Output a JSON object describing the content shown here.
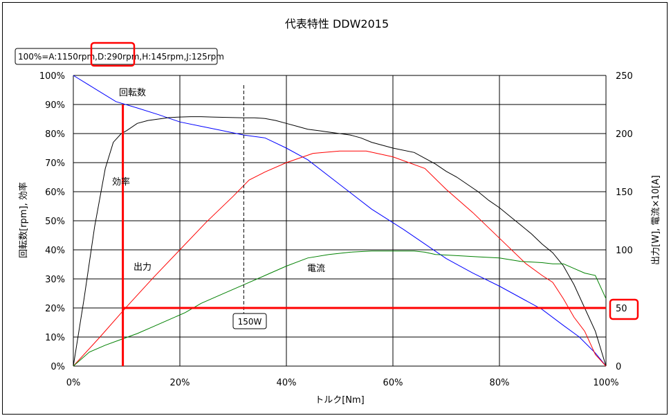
{
  "chart_data": {
    "type": "line",
    "title": "代表特性 DDW2015",
    "subtitle": "100%=A:1150rpm,D:290rpm,H:145rpm,J:125rpm",
    "xlabel": "トルク[Nm]",
    "ylabel_left": "回転数[rpm], 効率",
    "ylabel_right": "出力[W], 電流×10[A]",
    "x_ticks": [
      "0%",
      "20%",
      "40%",
      "60%",
      "80%",
      "100%"
    ],
    "y_left_ticks": [
      "0%",
      "10%",
      "20%",
      "30%",
      "40%",
      "50%",
      "60%",
      "70%",
      "80%",
      "90%",
      "100%"
    ],
    "y_right_ticks": [
      "0",
      "50",
      "100",
      "150",
      "200",
      "250"
    ],
    "xlim": [
      0,
      100
    ],
    "ylim_left": [
      0,
      100
    ],
    "ylim_right": [
      0,
      250
    ],
    "grid": true,
    "series": [
      {
        "name": "回転数",
        "axis": "left",
        "color": "#0000ff",
        "x": [
          0,
          4,
          8,
          12,
          16,
          20,
          24,
          28,
          32,
          36,
          40,
          44,
          50,
          56,
          62,
          66,
          70,
          75,
          80,
          85,
          88,
          92,
          95,
          98,
          100
        ],
        "y": [
          100,
          95.5,
          91,
          88.8,
          86.5,
          84,
          82.5,
          81,
          79.5,
          78.5,
          75,
          71,
          62.5,
          54,
          47,
          42,
          37,
          32,
          27.5,
          22.5,
          19.5,
          14,
          10,
          4.5,
          0
        ]
      },
      {
        "name": "効率",
        "axis": "left",
        "color": "#000000",
        "x": [
          0,
          2,
          4,
          6,
          7.5,
          9,
          10,
          12,
          14,
          16,
          18,
          20,
          22,
          24,
          26,
          28,
          30,
          32,
          34,
          36,
          38,
          40,
          42,
          44,
          46,
          48,
          50,
          52,
          54,
          56,
          60,
          64,
          66,
          68,
          70,
          72,
          74,
          76,
          78,
          80,
          82,
          84,
          86,
          88,
          90,
          92,
          94,
          96,
          98,
          100
        ],
        "y": [
          0,
          23,
          48,
          68,
          77,
          80,
          81,
          83.5,
          84.5,
          85,
          85.5,
          85.7,
          85.8,
          85.8,
          85.7,
          85.6,
          85.5,
          85.4,
          85.4,
          85.2,
          84.5,
          83.5,
          82.5,
          81.5,
          81,
          80.5,
          80,
          79.5,
          78.5,
          77,
          75,
          73.5,
          71.5,
          69.5,
          67,
          65,
          62.5,
          60,
          57,
          54.5,
          51.5,
          48.5,
          45.5,
          42,
          39,
          34.5,
          28,
          20,
          12,
          0
        ]
      },
      {
        "name": "出力",
        "axis": "right",
        "color": "#ff0000",
        "x": [
          0,
          5,
          10,
          15,
          20,
          25,
          30,
          33,
          36,
          40,
          45,
          50,
          55,
          60,
          66,
          70,
          75,
          80,
          85,
          88,
          90,
          92,
          94,
          96,
          98,
          100
        ],
        "y": [
          0,
          25,
          51,
          76,
          100,
          124,
          146,
          160,
          167,
          175,
          183,
          185,
          185,
          180,
          170,
          152,
          132,
          110,
          88,
          78,
          72,
          58,
          42,
          30,
          10,
          0
        ]
      },
      {
        "name": "電流",
        "axis": "right",
        "color": "#008000",
        "x": [
          0,
          3,
          6,
          9,
          12,
          15,
          18,
          21,
          24,
          28,
          32,
          36,
          40,
          44,
          48,
          52,
          56,
          60,
          64,
          66,
          68,
          72,
          76,
          80,
          84,
          88,
          90,
          92,
          94,
          96,
          98,
          100
        ],
        "y": [
          0,
          12,
          18,
          23,
          28,
          34,
          40,
          46,
          54,
          62,
          70,
          78,
          86,
          93,
          96,
          98,
          99,
          99,
          99,
          98,
          96,
          95,
          94,
          93,
          90,
          89,
          88,
          88,
          84,
          80,
          78,
          58
        ]
      }
    ],
    "annotations": {
      "label_rpm": "回転数",
      "label_eff": "効率",
      "label_out": "出力",
      "label_cur": "電流",
      "box_150w": "150W",
      "marker_x_label": "50"
    }
  }
}
